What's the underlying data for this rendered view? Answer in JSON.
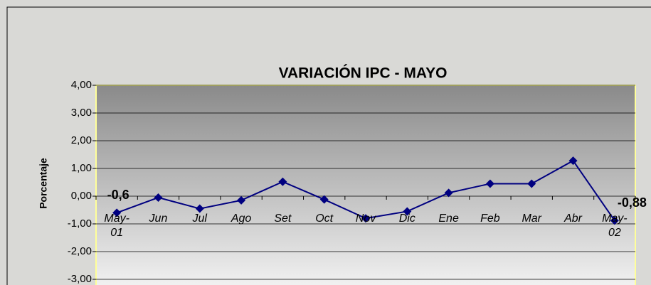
{
  "chart_data": {
    "type": "line",
    "title": "VARIACIÓN IPC - MAYO",
    "y_label": "Porcentaje",
    "categories": [
      "May-\n01",
      "Jun",
      "Jul",
      "Ago",
      "Set",
      "Oct",
      "Nov",
      "Dic",
      "Ene",
      "Feb",
      "Mar",
      "Abr",
      "May-\n02"
    ],
    "series": [
      {
        "name": "IPC",
        "color": "#000080",
        "values": [
          -0.6,
          -0.05,
          -0.45,
          -0.15,
          0.52,
          -0.12,
          -0.8,
          -0.55,
          0.12,
          0.45,
          0.45,
          1.28,
          -0.88
        ],
        "value_labels": [
          "-0,6",
          null,
          null,
          null,
          null,
          null,
          null,
          null,
          null,
          null,
          null,
          null,
          "-0,88"
        ]
      }
    ],
    "ylim": [
      -3,
      4
    ],
    "yticks": [
      {
        "value": -3,
        "label": "-3,00"
      },
      {
        "value": -2,
        "label": "-2,00"
      },
      {
        "value": -1,
        "label": "-1,00"
      },
      {
        "value": 0,
        "label": "0,00"
      },
      {
        "value": 1,
        "label": "1,00"
      },
      {
        "value": 2,
        "label": "2,00"
      },
      {
        "value": 3,
        "label": "3,00"
      },
      {
        "value": 4,
        "label": "4,00"
      }
    ],
    "grid": true
  }
}
